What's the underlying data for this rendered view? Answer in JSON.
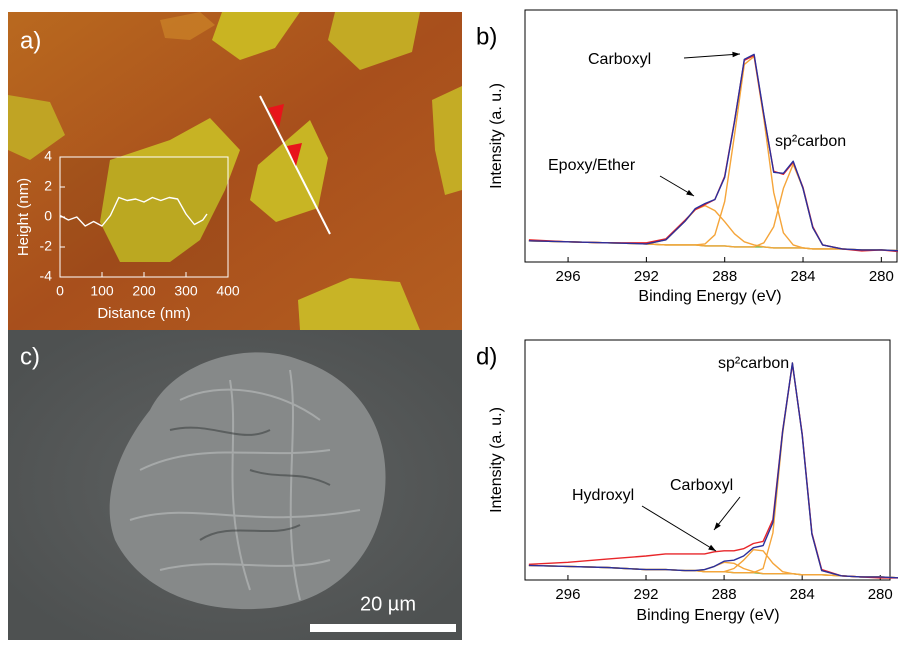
{
  "panel_labels": [
    "a)",
    "b)",
    "c)",
    "d)"
  ],
  "scale_bar": "20 µm",
  "chart_data": [
    {
      "type": "line",
      "xlabel": "Distance (nm)",
      "ylabel": "Height (nm)",
      "x": [
        0,
        20,
        40,
        60,
        80,
        100,
        120,
        140,
        160,
        180,
        200,
        220,
        240,
        260,
        280,
        300,
        320,
        340,
        350
      ],
      "series": [
        {
          "color": "#ffffff",
          "values": [
            0.1,
            -0.2,
            0,
            -0.6,
            -0.3,
            -0.6,
            0.1,
            1.3,
            1.1,
            1.2,
            1.0,
            1.3,
            1.1,
            1.3,
            1.2,
            0.2,
            -0.5,
            -0.2,
            0.2
          ]
        }
      ],
      "xlim": [
        0,
        400
      ],
      "xticks": [
        0,
        100,
        200,
        300,
        400
      ],
      "ylim": [
        -4,
        4
      ],
      "yticks": [
        -4,
        -2,
        0,
        2,
        4
      ]
    },
    {
      "type": "line",
      "xlabel": "Binding Energy (eV)",
      "ylabel": "Intensity (a. u.)",
      "x": [
        298,
        296,
        294,
        292,
        291,
        290,
        289.5,
        289,
        288.5,
        288,
        287.5,
        287,
        286.5,
        286,
        285.5,
        285,
        284.5,
        284,
        283.5,
        283,
        282,
        281,
        280,
        279
      ],
      "series": [
        {
          "color": "#6bb84a",
          "values": [
            21,
            20,
            19,
            18,
            17,
            17,
            17,
            16,
            16,
            16,
            15,
            15,
            15,
            15,
            14,
            14,
            14,
            14,
            13,
            13,
            13,
            12,
            12,
            11
          ]
        },
        {
          "color": "#f5a53a",
          "values": [
            21,
            20,
            19,
            18,
            22,
            41,
            52,
            56,
            51,
            40,
            28,
            20,
            17,
            15,
            14,
            14,
            14,
            14,
            13,
            13,
            13,
            12,
            12,
            11
          ]
        },
        {
          "color": "#f5a53a",
          "values": [
            21,
            20,
            19,
            18,
            17,
            17,
            17,
            18,
            27,
            60,
            126,
            196,
            204,
            142,
            69,
            29,
            17,
            14,
            13,
            13,
            13,
            12,
            12,
            11
          ]
        },
        {
          "color": "#f5a53a",
          "values": [
            21,
            20,
            19,
            18,
            17,
            17,
            17,
            16,
            16,
            16,
            15,
            15,
            15,
            19,
            35,
            73,
            97,
            73,
            34,
            17,
            13,
            12,
            12,
            11
          ]
        },
        {
          "color": "#e8262a",
          "values": [
            22,
            20,
            19,
            19,
            23,
            42,
            52,
            57,
            62,
            85,
            140,
            200,
            205,
            145,
            90,
            87,
            99,
            74,
            35,
            17,
            13,
            11,
            12,
            10
          ]
        },
        {
          "color": "#2b2f9c",
          "values": [
            21,
            20,
            19,
            18,
            22,
            41,
            53,
            58,
            62,
            84,
            139,
            201,
            206,
            146,
            89,
            88,
            100,
            73,
            34,
            17,
            13,
            12,
            12,
            11
          ]
        }
      ],
      "xlim": [
        298.2,
        279.2
      ],
      "xticks": [
        296,
        292,
        288,
        284,
        280
      ],
      "ylim": [
        0,
        250
      ],
      "annotations": [
        "Carboxyl",
        "sp²carbon",
        "Epoxy/Ether"
      ]
    },
    {
      "type": "line",
      "xlabel": "Binding Energy (eV)",
      "ylabel": "Intensity (a. u.)",
      "x": [
        298,
        296,
        294,
        292,
        291,
        290,
        289.5,
        289,
        288.5,
        288,
        287.5,
        287,
        286.5,
        286,
        285.5,
        285,
        284.5,
        284,
        283.5,
        283,
        282,
        281,
        280,
        279
      ],
      "series": [
        {
          "color": "#6bb84a",
          "values": [
            14,
            13,
            12,
            10,
            10,
            9,
            9,
            8,
            8,
            8,
            7,
            7,
            7,
            6,
            6,
            6,
            6,
            5,
            5,
            5,
            4,
            3,
            3,
            2
          ]
        },
        {
          "color": "#f5a53a",
          "values": [
            14,
            13,
            12,
            10,
            10,
            9,
            9,
            10,
            13,
            17,
            16,
            11,
            8,
            6,
            6,
            6,
            6,
            5,
            5,
            5,
            4,
            3,
            3,
            2
          ]
        },
        {
          "color": "#f5a53a",
          "values": [
            14,
            13,
            12,
            10,
            10,
            9,
            9,
            8,
            8,
            8,
            11,
            19,
            29,
            28,
            16,
            8,
            6,
            5,
            5,
            5,
            4,
            3,
            3,
            2
          ]
        },
        {
          "color": "#f5a53a",
          "values": [
            14,
            13,
            12,
            10,
            10,
            9,
            9,
            8,
            8,
            8,
            7,
            7,
            7,
            11,
            45,
            140,
            208,
            139,
            44,
            9,
            4,
            3,
            3,
            2
          ]
        },
        {
          "color": "#e8262a",
          "values": [
            15,
            17,
            20,
            23,
            25,
            25,
            25,
            25,
            27,
            28,
            28,
            30,
            35,
            37,
            58,
            143,
            207,
            140,
            45,
            10,
            4,
            3,
            2,
            2
          ]
        },
        {
          "color": "#2b2f9c",
          "values": [
            14,
            13,
            12,
            10,
            10,
            9,
            9,
            10,
            13,
            18,
            19,
            23,
            31,
            33,
            55,
            142,
            208,
            139,
            44,
            9,
            4,
            3,
            3,
            2
          ]
        }
      ],
      "xlim": [
        298.2,
        279.5
      ],
      "xticks": [
        296,
        292,
        288,
        284,
        280
      ],
      "ylim": [
        0,
        230
      ],
      "annotations": [
        "sp²carbon",
        "Carboxyl",
        "Hydroxyl"
      ]
    }
  ]
}
